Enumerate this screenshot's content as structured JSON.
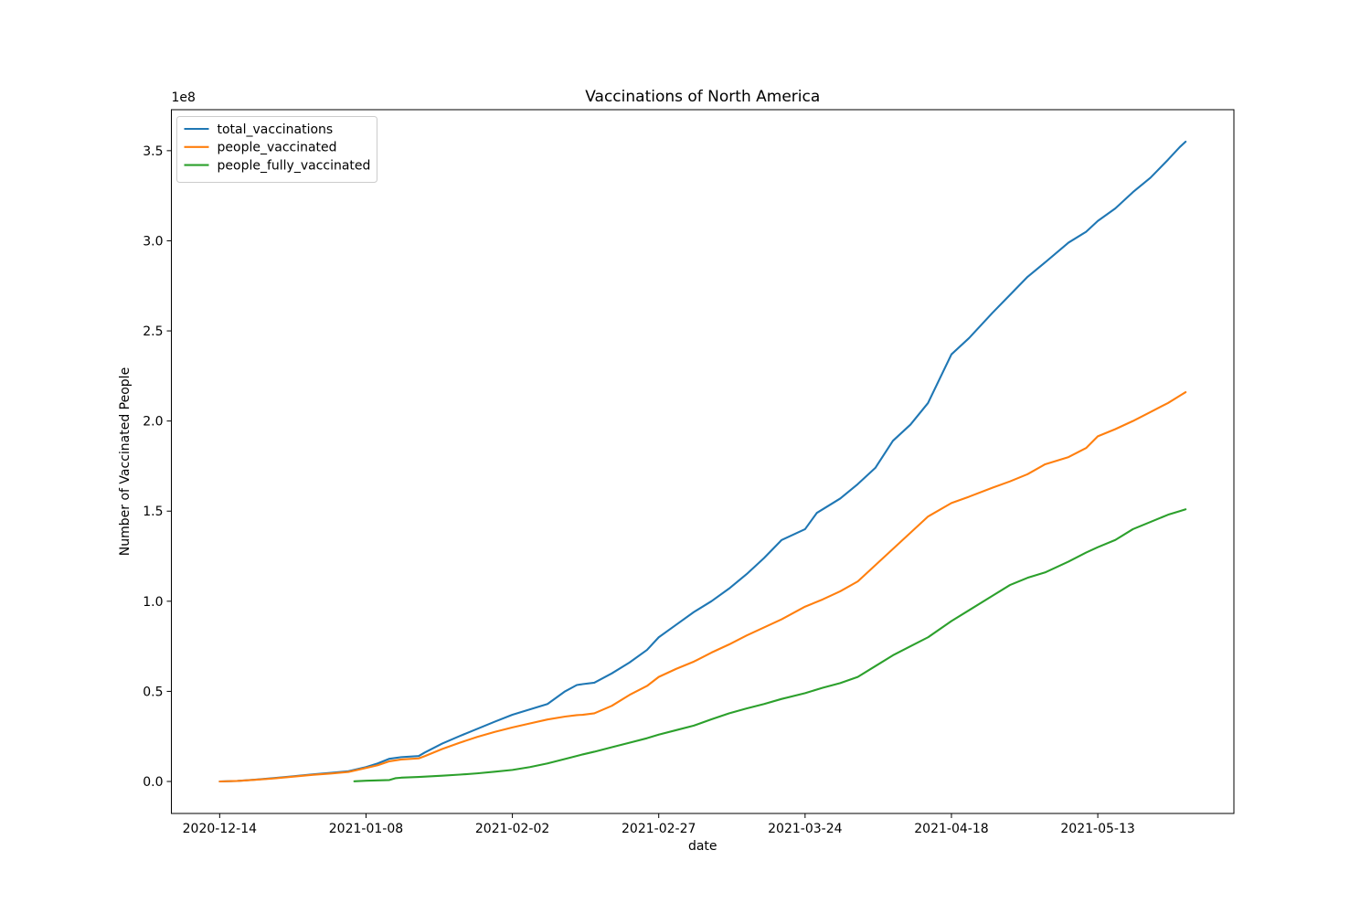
{
  "figure": {
    "title": "Vaccinations of North America",
    "xlabel": "date",
    "ylabel": "Number of Vaccinated People",
    "offset_text": "1e8"
  },
  "chart_data": {
    "type": "line",
    "title": "Vaccinations of North America",
    "xlabel": "date",
    "ylabel": "Number of Vaccinated People",
    "y_scale_factor": "1e8",
    "grid": false,
    "legend_position": "upper left",
    "x_start_date": "2020-12-14",
    "x_tick_labels": [
      "2020-12-14",
      "2021-01-08",
      "2021-02-02",
      "2021-02-27",
      "2021-03-24",
      "2021-04-18",
      "2021-05-13"
    ],
    "x_tick_interval_days": 25,
    "y_ticks": [
      0.0,
      0.5,
      1.0,
      1.5,
      2.0,
      2.5,
      3.0,
      3.5
    ],
    "xlim_days": [
      -8.25,
      173.25
    ],
    "ylim": [
      -0.1775,
      3.7275
    ],
    "series": [
      {
        "name": "total_vaccinations",
        "color": "#1f77b4",
        "points": [
          [
            "2020-12-14",
            0.0
          ],
          [
            "2020-12-17",
            0.003
          ],
          [
            "2020-12-20",
            0.01
          ],
          [
            "2020-12-23",
            0.018
          ],
          [
            "2020-12-26",
            0.027
          ],
          [
            "2020-12-30",
            0.04
          ],
          [
            "2021-01-02",
            0.048
          ],
          [
            "2021-01-05",
            0.057
          ],
          [
            "2021-01-08",
            0.08
          ],
          [
            "2021-01-10",
            0.1
          ],
          [
            "2021-01-12",
            0.126
          ],
          [
            "2021-01-14",
            0.135
          ],
          [
            "2021-01-17",
            0.141
          ],
          [
            "2021-01-18",
            0.16
          ],
          [
            "2021-01-21",
            0.21
          ],
          [
            "2021-01-24",
            0.252
          ],
          [
            "2021-01-27",
            0.292
          ],
          [
            "2021-01-30",
            0.332
          ],
          [
            "2021-02-02",
            0.37
          ],
          [
            "2021-02-05",
            0.4
          ],
          [
            "2021-02-08",
            0.43
          ],
          [
            "2021-02-11",
            0.5
          ],
          [
            "2021-02-13",
            0.535
          ],
          [
            "2021-02-14",
            0.54
          ],
          [
            "2021-02-16",
            0.548
          ],
          [
            "2021-02-19",
            0.6
          ],
          [
            "2021-02-22",
            0.66
          ],
          [
            "2021-02-25",
            0.73
          ],
          [
            "2021-02-27",
            0.8
          ],
          [
            "2021-03-02",
            0.87
          ],
          [
            "2021-03-05",
            0.94
          ],
          [
            "2021-03-08",
            1.0
          ],
          [
            "2021-03-11",
            1.07
          ],
          [
            "2021-03-14",
            1.15
          ],
          [
            "2021-03-17",
            1.24
          ],
          [
            "2021-03-20",
            1.34
          ],
          [
            "2021-03-24",
            1.4
          ],
          [
            "2021-03-26",
            1.49
          ],
          [
            "2021-03-30",
            1.57
          ],
          [
            "2021-04-02",
            1.65
          ],
          [
            "2021-04-05",
            1.74
          ],
          [
            "2021-04-08",
            1.89
          ],
          [
            "2021-04-11",
            1.98
          ],
          [
            "2021-04-14",
            2.1
          ],
          [
            "2021-04-18",
            2.37
          ],
          [
            "2021-04-21",
            2.46
          ],
          [
            "2021-04-25",
            2.6
          ],
          [
            "2021-04-28",
            2.7
          ],
          [
            "2021-05-01",
            2.8
          ],
          [
            "2021-05-04",
            2.88
          ],
          [
            "2021-05-08",
            2.99
          ],
          [
            "2021-05-11",
            3.05
          ],
          [
            "2021-05-13",
            3.11
          ],
          [
            "2021-05-16",
            3.18
          ],
          [
            "2021-05-19",
            3.27
          ],
          [
            "2021-05-22",
            3.35
          ],
          [
            "2021-05-25",
            3.45
          ],
          [
            "2021-05-27",
            3.52
          ],
          [
            "2021-05-28",
            3.55
          ]
        ]
      },
      {
        "name": "people_vaccinated",
        "color": "#ff7f0e",
        "points": [
          [
            "2020-12-14",
            0.0
          ],
          [
            "2020-12-17",
            0.003
          ],
          [
            "2020-12-20",
            0.009
          ],
          [
            "2020-12-23",
            0.016
          ],
          [
            "2020-12-26",
            0.025
          ],
          [
            "2020-12-30",
            0.037
          ],
          [
            "2021-01-02",
            0.044
          ],
          [
            "2021-01-05",
            0.053
          ],
          [
            "2021-01-08",
            0.075
          ],
          [
            "2021-01-10",
            0.09
          ],
          [
            "2021-01-12",
            0.112
          ],
          [
            "2021-01-14",
            0.122
          ],
          [
            "2021-01-17",
            0.128
          ],
          [
            "2021-01-18",
            0.14
          ],
          [
            "2021-01-21",
            0.18
          ],
          [
            "2021-01-24",
            0.215
          ],
          [
            "2021-01-27",
            0.247
          ],
          [
            "2021-01-30",
            0.275
          ],
          [
            "2021-02-02",
            0.3
          ],
          [
            "2021-02-05",
            0.322
          ],
          [
            "2021-02-08",
            0.344
          ],
          [
            "2021-02-11",
            0.36
          ],
          [
            "2021-02-13",
            0.368
          ],
          [
            "2021-02-14",
            0.37
          ],
          [
            "2021-02-16",
            0.378
          ],
          [
            "2021-02-19",
            0.42
          ],
          [
            "2021-02-22",
            0.48
          ],
          [
            "2021-02-25",
            0.53
          ],
          [
            "2021-02-27",
            0.58
          ],
          [
            "2021-03-02",
            0.625
          ],
          [
            "2021-03-05",
            0.665
          ],
          [
            "2021-03-08",
            0.715
          ],
          [
            "2021-03-11",
            0.76
          ],
          [
            "2021-03-14",
            0.81
          ],
          [
            "2021-03-17",
            0.855
          ],
          [
            "2021-03-20",
            0.9
          ],
          [
            "2021-03-24",
            0.97
          ],
          [
            "2021-03-27",
            1.01
          ],
          [
            "2021-03-30",
            1.055
          ],
          [
            "2021-04-02",
            1.11
          ],
          [
            "2021-04-05",
            1.2
          ],
          [
            "2021-04-08",
            1.29
          ],
          [
            "2021-04-11",
            1.38
          ],
          [
            "2021-04-14",
            1.47
          ],
          [
            "2021-04-18",
            1.545
          ],
          [
            "2021-04-21",
            1.58
          ],
          [
            "2021-04-25",
            1.63
          ],
          [
            "2021-04-28",
            1.665
          ],
          [
            "2021-05-01",
            1.705
          ],
          [
            "2021-05-04",
            1.76
          ],
          [
            "2021-05-08",
            1.8
          ],
          [
            "2021-05-11",
            1.85
          ],
          [
            "2021-05-13",
            1.915
          ],
          [
            "2021-05-16",
            1.955
          ],
          [
            "2021-05-19",
            2.0
          ],
          [
            "2021-05-22",
            2.05
          ],
          [
            "2021-05-25",
            2.1
          ],
          [
            "2021-05-27",
            2.14
          ],
          [
            "2021-05-28",
            2.16
          ]
        ]
      },
      {
        "name": "people_fully_vaccinated",
        "color": "#2ca02c",
        "points": [
          [
            "2021-01-06",
            0.001
          ],
          [
            "2021-01-08",
            0.004
          ],
          [
            "2021-01-10",
            0.006
          ],
          [
            "2021-01-12",
            0.008
          ],
          [
            "2021-01-13",
            0.018
          ],
          [
            "2021-01-14",
            0.021
          ],
          [
            "2021-01-17",
            0.025
          ],
          [
            "2021-01-21",
            0.032
          ],
          [
            "2021-01-24",
            0.038
          ],
          [
            "2021-01-27",
            0.045
          ],
          [
            "2021-01-30",
            0.054
          ],
          [
            "2021-02-02",
            0.064
          ],
          [
            "2021-02-05",
            0.08
          ],
          [
            "2021-02-08",
            0.1
          ],
          [
            "2021-02-11",
            0.125
          ],
          [
            "2021-02-14",
            0.15
          ],
          [
            "2021-02-16",
            0.165
          ],
          [
            "2021-02-19",
            0.19
          ],
          [
            "2021-02-22",
            0.215
          ],
          [
            "2021-02-25",
            0.24
          ],
          [
            "2021-02-27",
            0.26
          ],
          [
            "2021-03-02",
            0.285
          ],
          [
            "2021-03-05",
            0.31
          ],
          [
            "2021-03-08",
            0.345
          ],
          [
            "2021-03-11",
            0.378
          ],
          [
            "2021-03-14",
            0.405
          ],
          [
            "2021-03-17",
            0.43
          ],
          [
            "2021-03-20",
            0.458
          ],
          [
            "2021-03-24",
            0.49
          ],
          [
            "2021-03-27",
            0.52
          ],
          [
            "2021-03-30",
            0.546
          ],
          [
            "2021-04-02",
            0.58
          ],
          [
            "2021-04-05",
            0.64
          ],
          [
            "2021-04-08",
            0.7
          ],
          [
            "2021-04-11",
            0.75
          ],
          [
            "2021-04-14",
            0.8
          ],
          [
            "2021-04-18",
            0.89
          ],
          [
            "2021-04-21",
            0.95
          ],
          [
            "2021-04-25",
            1.03
          ],
          [
            "2021-04-28",
            1.09
          ],
          [
            "2021-05-01",
            1.13
          ],
          [
            "2021-05-04",
            1.16
          ],
          [
            "2021-05-08",
            1.22
          ],
          [
            "2021-05-11",
            1.27
          ],
          [
            "2021-05-13",
            1.3
          ],
          [
            "2021-05-16",
            1.34
          ],
          [
            "2021-05-19",
            1.4
          ],
          [
            "2021-05-22",
            1.44
          ],
          [
            "2021-05-25",
            1.48
          ],
          [
            "2021-05-27",
            1.5
          ],
          [
            "2021-05-28",
            1.51
          ]
        ]
      }
    ]
  }
}
